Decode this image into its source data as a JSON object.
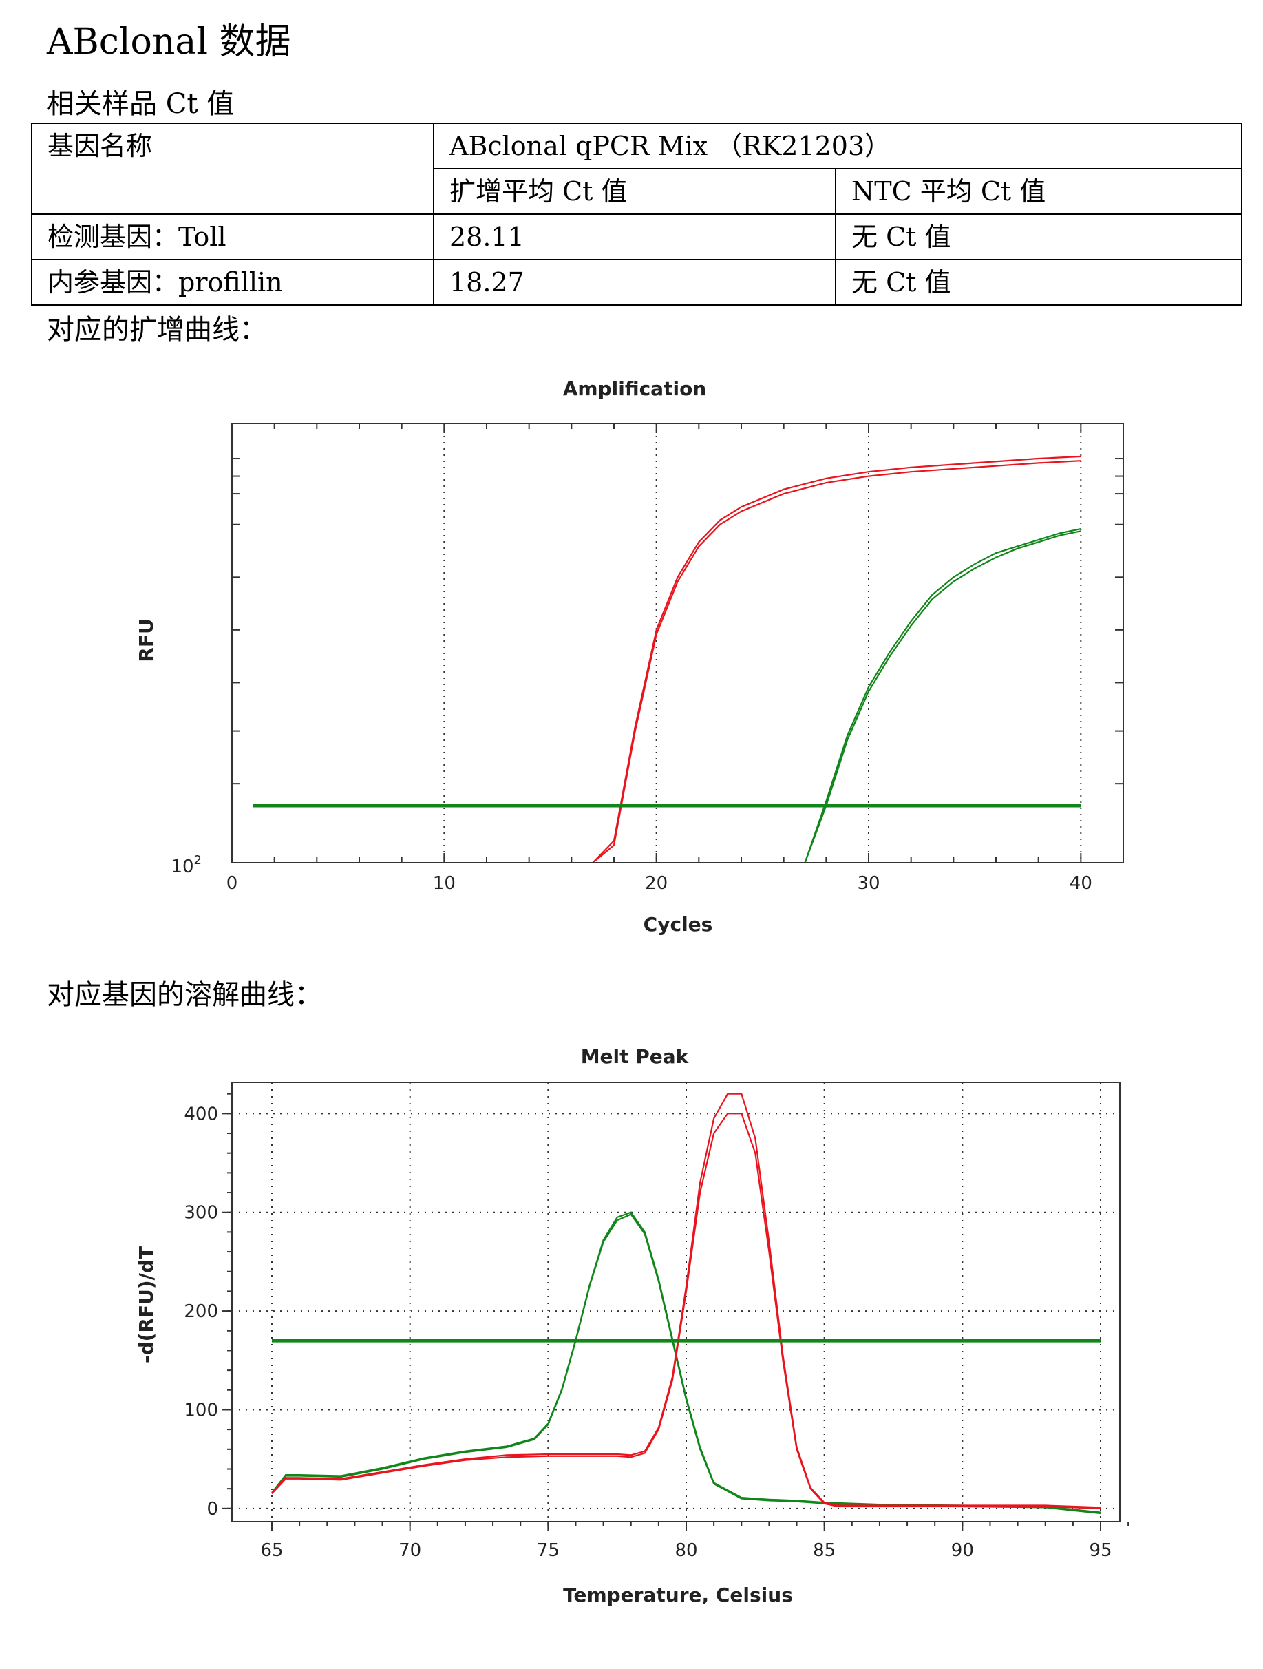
{
  "doc": {
    "title": "ABclonal 数据",
    "section_ct": "相关样品 Ct 值",
    "section_amp": "对应的扩增曲线：",
    "section_melt": "对应基因的溶解曲线："
  },
  "table": {
    "gene_name_header": "基因名称",
    "product_header": "ABclonal qPCR Mix （RK21203）",
    "col_avg_ct": "扩增平均 Ct 值",
    "col_ntc": "NTC 平均 Ct 值",
    "rows": [
      {
        "gene": "检测基因：Toll",
        "avg_ct": "28.11",
        "ntc": "无 Ct 值"
      },
      {
        "gene": "内参基因：profillin",
        "avg_ct": "18.27",
        "ntc": "无 Ct 值"
      }
    ]
  },
  "colors": {
    "red": "#e8141e",
    "green": "#11861a"
  },
  "chart_data": [
    {
      "type": "line",
      "title": "Amplification",
      "xlabel": "Cycles",
      "ylabel": "RFU",
      "xlim": [
        0,
        42
      ],
      "x_ticks": [
        "0",
        "10",
        "20",
        "30",
        "40"
      ],
      "y_tick_label_base": "10",
      "y_tick_label_exp": "2",
      "y_scale": "log",
      "grid": "vertical dotted",
      "threshold": 0.13,
      "series": [
        {
          "color": "#e8141e",
          "x": [
            17,
            18,
            19,
            20,
            21,
            22,
            23,
            24,
            26,
            28,
            30,
            32,
            35,
            38,
            40
          ],
          "y": [
            0.0,
            0.04,
            0.3,
            0.52,
            0.64,
            0.72,
            0.77,
            0.8,
            0.84,
            0.865,
            0.88,
            0.89,
            0.9,
            0.91,
            0.915
          ]
        },
        {
          "color": "#e8141e",
          "x": [
            17,
            18,
            19,
            20,
            21,
            22,
            23,
            24,
            26,
            28,
            30,
            32,
            35,
            38,
            40
          ],
          "y": [
            0.0,
            0.05,
            0.31,
            0.53,
            0.65,
            0.73,
            0.78,
            0.81,
            0.85,
            0.875,
            0.89,
            0.9,
            0.91,
            0.92,
            0.925
          ]
        },
        {
          "color": "#11861a",
          "x": [
            27,
            28,
            29,
            30,
            31,
            32,
            33,
            34,
            35,
            36,
            37,
            38,
            39,
            40
          ],
          "y": [
            0.0,
            0.13,
            0.28,
            0.39,
            0.47,
            0.54,
            0.6,
            0.64,
            0.67,
            0.695,
            0.715,
            0.73,
            0.745,
            0.755
          ]
        },
        {
          "color": "#11861a",
          "x": [
            27,
            28,
            29,
            30,
            31,
            32,
            33,
            34,
            35,
            36,
            37,
            38,
            39,
            40
          ],
          "y": [
            0.0,
            0.14,
            0.29,
            0.4,
            0.48,
            0.55,
            0.61,
            0.65,
            0.68,
            0.705,
            0.72,
            0.735,
            0.75,
            0.76
          ]
        }
      ]
    },
    {
      "type": "line",
      "title": "Melt Peak",
      "xlabel": "Temperature, Celsius",
      "ylabel": "-d(RFU)/dT",
      "xlim": [
        65,
        96.5
      ],
      "ylim": [
        -5,
        440
      ],
      "x_ticks": [
        65,
        70,
        75,
        80,
        85,
        90,
        95
      ],
      "y_ticks": [
        0,
        100,
        200,
        300,
        400
      ],
      "grid": "dotted",
      "threshold": 170,
      "series": [
        {
          "color": "#11861a",
          "x": [
            65,
            65.5,
            66,
            67.5,
            69,
            70.5,
            72,
            73.5,
            74.5,
            75,
            75.5,
            76,
            76.5,
            77,
            77.5,
            78,
            78.5,
            79,
            79.5,
            80,
            80.5,
            81,
            82,
            83,
            84,
            85,
            87,
            90,
            93,
            95
          ],
          "y": [
            15,
            33,
            33,
            32,
            40,
            50,
            57,
            62,
            70,
            85,
            120,
            170,
            225,
            270,
            292,
            298,
            278,
            230,
            170,
            110,
            60,
            25,
            10,
            8,
            7,
            5,
            3,
            2,
            1,
            -5
          ]
        },
        {
          "color": "#11861a",
          "x": [
            65,
            65.5,
            66,
            67.5,
            69,
            70.5,
            72,
            73.5,
            74.5,
            75,
            75.5,
            76,
            76.5,
            77,
            77.5,
            78,
            78.5,
            79,
            79.5,
            80,
            80.5,
            81,
            82,
            83,
            84,
            85,
            87,
            90,
            93,
            95
          ],
          "y": [
            16,
            34,
            34,
            33,
            41,
            51,
            58,
            63,
            71,
            86,
            121,
            171,
            226,
            272,
            295,
            300,
            280,
            232,
            172,
            112,
            62,
            26,
            11,
            9,
            8,
            6,
            4,
            3,
            2,
            -4
          ]
        },
        {
          "color": "#e8141e",
          "x": [
            65,
            65.5,
            66,
            67.5,
            69,
            70.5,
            72,
            73.5,
            75,
            76.5,
            77.5,
            78,
            78.5,
            79,
            79.5,
            80,
            80.5,
            81,
            81.5,
            82,
            82.5,
            83,
            83.5,
            84,
            84.5,
            85,
            85.5,
            87,
            90,
            93,
            95
          ],
          "y": [
            15,
            30,
            30,
            29,
            36,
            43,
            49,
            52,
            53,
            53,
            53,
            52,
            56,
            80,
            130,
            220,
            320,
            380,
            400,
            400,
            360,
            260,
            150,
            60,
            20,
            5,
            2,
            2,
            2,
            2,
            0
          ]
        },
        {
          "color": "#e8141e",
          "x": [
            65,
            65.5,
            66,
            67.5,
            69,
            70.5,
            72,
            73.5,
            75,
            76.5,
            77.5,
            78,
            78.5,
            79,
            79.5,
            80,
            80.5,
            81,
            81.5,
            82,
            82.5,
            83,
            83.5,
            84,
            84.5,
            85,
            85.5,
            87,
            90,
            93,
            95
          ],
          "y": [
            16,
            31,
            31,
            30,
            37,
            44,
            50,
            54,
            55,
            55,
            55,
            54,
            58,
            82,
            133,
            225,
            330,
            395,
            420,
            420,
            375,
            270,
            155,
            62,
            21,
            6,
            3,
            3,
            3,
            3,
            1
          ]
        }
      ]
    }
  ]
}
